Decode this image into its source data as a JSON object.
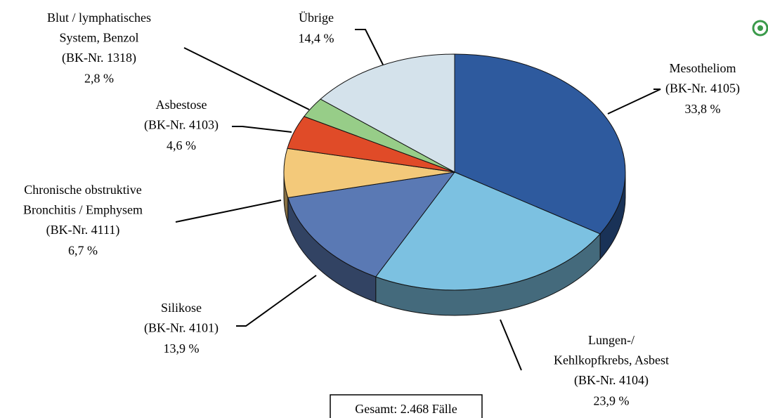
{
  "chart_data": {
    "type": "pie3d",
    "categories": [
      [
        "Mesotheliom",
        "(BK-Nr. 4105)"
      ],
      [
        "Lungen-/",
        "Kehlkopfkrebs, Asbest",
        "(BK-Nr. 4104)"
      ],
      [
        "Silikose",
        "(BK-Nr. 4101)"
      ],
      [
        "Chronische obstruktive",
        "Bronchitis / Emphysem",
        "(BK-Nr. 4111)"
      ],
      [
        "Asbestose",
        "(BK-Nr. 4103)"
      ],
      [
        "Blut / lymphatisches",
        "System, Benzol",
        "(BK-Nr. 1318)"
      ],
      [
        "Übrige"
      ]
    ],
    "values": [
      33.8,
      23.9,
      13.9,
      6.7,
      4.6,
      2.8,
      14.4
    ],
    "value_labels": [
      "33,8 %",
      "23,9 %",
      "13,9 %",
      "6,7 %",
      "4,6 %",
      "2,8 %",
      "14,4 %"
    ],
    "colors": [
      "#2e5a9e",
      "#7cc1e1",
      "#5a79b4",
      "#f3c97a",
      "#e04b28",
      "#97cd88",
      "#d4e2eb"
    ],
    "annotation": "Gesamt: 2.468 Fälle"
  }
}
